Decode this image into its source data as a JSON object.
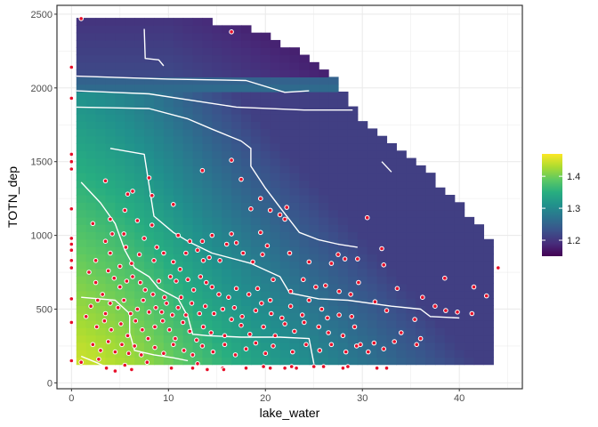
{
  "chart_data": {
    "type": "heatmap",
    "subtype": "interpolated surface with contour lines and scatter overlay",
    "xlabel": "lake_water",
    "ylabel": "TOTN_dep",
    "xlim": [
      -1.5,
      46.5
    ],
    "ylim": [
      -40,
      2560
    ],
    "x_ticks": [
      0,
      10,
      20,
      30,
      40
    ],
    "y_ticks": [
      0,
      500,
      1000,
      1500,
      2000,
      2500
    ],
    "grid": true,
    "colorscale": "viridis",
    "colorbar": {
      "range": [
        1.15,
        1.47
      ],
      "ticks": [
        1.2,
        1.3,
        1.4
      ],
      "position": "right"
    },
    "grid_step": [
      1,
      50
    ],
    "surface_extent": {
      "x": [
        0.5,
        43.5
      ],
      "y": [
        125,
        2450
      ]
    },
    "upper_boundary": [
      [
        0.5,
        2450
      ],
      [
        11.5,
        2450
      ],
      [
        17.5,
        2400
      ],
      [
        24.5,
        2200
      ],
      [
        27.5,
        2000
      ],
      [
        30,
        1750
      ],
      [
        33,
        1600
      ],
      [
        36,
        1450
      ],
      [
        39,
        1250
      ],
      [
        42,
        1050
      ],
      [
        43.5,
        930
      ]
    ],
    "contour_lines": [
      [
        [
          7.5,
          2400
        ],
        [
          7.6,
          2200
        ],
        [
          9,
          2190
        ],
        [
          9.5,
          2150
        ]
      ],
      [
        [
          0.5,
          2080
        ],
        [
          10,
          2060
        ],
        [
          18,
          2050
        ],
        [
          22,
          1970
        ],
        [
          24.5,
          1980
        ]
      ],
      [
        [
          0.5,
          1980
        ],
        [
          8,
          1960
        ],
        [
          17,
          1870
        ],
        [
          24,
          1850
        ],
        [
          29,
          1850
        ]
      ],
      [
        [
          0.5,
          1870
        ],
        [
          8,
          1860
        ],
        [
          12,
          1790
        ],
        [
          14.5,
          1720
        ],
        [
          17.5,
          1640
        ],
        [
          18.5,
          1590
        ],
        [
          18.5,
          1470
        ],
        [
          20,
          1320
        ],
        [
          21.5,
          1190
        ],
        [
          23.5,
          1020
        ],
        [
          25.5,
          970
        ],
        [
          27.5,
          940
        ],
        [
          29.5,
          920
        ]
      ],
      [
        [
          4,
          1590
        ],
        [
          7.5,
          1550
        ],
        [
          8,
          1340
        ],
        [
          8.5,
          1130
        ],
        [
          10.5,
          1020
        ],
        [
          12,
          960
        ],
        [
          14.5,
          880
        ],
        [
          18.5,
          810
        ],
        [
          21.5,
          720
        ],
        [
          22.5,
          610
        ],
        [
          25.5,
          570
        ],
        [
          28.5,
          560
        ],
        [
          33,
          520
        ],
        [
          36,
          500
        ],
        [
          37,
          450
        ],
        [
          40,
          440
        ]
      ],
      [
        [
          32,
          1500
        ],
        [
          33,
          1430
        ]
      ],
      [
        [
          1,
          1360
        ],
        [
          3,
          1220
        ],
        [
          4.5,
          1080
        ],
        [
          5.5,
          900
        ],
        [
          6.5,
          780
        ],
        [
          8,
          720
        ],
        [
          9,
          640
        ],
        [
          11,
          570
        ],
        [
          12,
          450
        ],
        [
          12.5,
          330
        ],
        [
          14,
          320
        ],
        [
          17.5,
          310
        ],
        [
          21.5,
          310
        ],
        [
          24.5,
          300
        ],
        [
          25,
          130
        ]
      ],
      [
        [
          1,
          580
        ],
        [
          4.5,
          560
        ],
        [
          6,
          470
        ],
        [
          6,
          340
        ],
        [
          6.5,
          220
        ],
        [
          8.5,
          190
        ],
        [
          10.5,
          170
        ],
        [
          12,
          150
        ]
      ],
      [
        [
          1,
          180
        ],
        [
          2.5,
          140
        ],
        [
          3.5,
          110
        ]
      ]
    ],
    "points": [
      [
        1,
        2470
      ],
      [
        0,
        2140
      ],
      [
        0,
        1930
      ],
      [
        0,
        1550
      ],
      [
        0,
        1500
      ],
      [
        0,
        1450
      ],
      [
        0,
        1180
      ],
      [
        0,
        980
      ],
      [
        0,
        940
      ],
      [
        0,
        900
      ],
      [
        0,
        830
      ],
      [
        0,
        780
      ],
      [
        0,
        570
      ],
      [
        0,
        410
      ],
      [
        0,
        150
      ],
      [
        16.5,
        2380
      ],
      [
        13.5,
        1440
      ],
      [
        16.5,
        1510
      ],
      [
        8,
        1390
      ],
      [
        3.5,
        1370
      ],
      [
        6.3,
        1300
      ],
      [
        5.8,
        1280
      ],
      [
        8.3,
        1270
      ],
      [
        10.5,
        1210
      ],
      [
        17.5,
        1380
      ],
      [
        19.5,
        1250
      ],
      [
        18.5,
        1180
      ],
      [
        20.5,
        1170
      ],
      [
        21.5,
        1140
      ],
      [
        22,
        1110
      ],
      [
        30.5,
        1120
      ],
      [
        22.2,
        1190
      ],
      [
        2.2,
        1080
      ],
      [
        4,
        1110
      ],
      [
        5.5,
        1170
      ],
      [
        6.8,
        1100
      ],
      [
        4.2,
        1010
      ],
      [
        5.4,
        1010
      ],
      [
        8.3,
        1070
      ],
      [
        3.5,
        960
      ],
      [
        5.6,
        920
      ],
      [
        7.5,
        980
      ],
      [
        8.8,
        920
      ],
      [
        9.5,
        880
      ],
      [
        11,
        1000
      ],
      [
        12.2,
        960
      ],
      [
        13.5,
        960
      ],
      [
        14.5,
        1000
      ],
      [
        16.5,
        1010
      ],
      [
        17,
        950
      ],
      [
        19.5,
        1020
      ],
      [
        19.7,
        870
      ],
      [
        20.2,
        930
      ],
      [
        2.5,
        830
      ],
      [
        4,
        880
      ],
      [
        5,
        790
      ],
      [
        6.2,
        810
      ],
      [
        7,
        870
      ],
      [
        8.5,
        830
      ],
      [
        10.5,
        820
      ],
      [
        11.2,
        770
      ],
      [
        11.8,
        880
      ],
      [
        13,
        900
      ],
      [
        13.6,
        830
      ],
      [
        14.2,
        850
      ],
      [
        15.3,
        830
      ],
      [
        16,
        940
      ],
      [
        17.7,
        880
      ],
      [
        18.7,
        820
      ],
      [
        20.8,
        700
      ],
      [
        22.5,
        880
      ],
      [
        24.5,
        820
      ],
      [
        26.8,
        810
      ],
      [
        27.5,
        870
      ],
      [
        28.2,
        840
      ],
      [
        29.5,
        840
      ],
      [
        32,
        910
      ],
      [
        32.2,
        800
      ],
      [
        38.5,
        710
      ],
      [
        41.5,
        650
      ],
      [
        1.8,
        750
      ],
      [
        2.5,
        680
      ],
      [
        3.2,
        600
      ],
      [
        3.8,
        760
      ],
      [
        4.4,
        710
      ],
      [
        5,
        650
      ],
      [
        5.7,
        690
      ],
      [
        6.3,
        720
      ],
      [
        7.1,
        680
      ],
      [
        7.6,
        630
      ],
      [
        8.4,
        600
      ],
      [
        9,
        690
      ],
      [
        9.6,
        580
      ],
      [
        10.2,
        720
      ],
      [
        10.8,
        690
      ],
      [
        11.3,
        580
      ],
      [
        12,
        700
      ],
      [
        12.6,
        630
      ],
      [
        13.3,
        720
      ],
      [
        13.9,
        680
      ],
      [
        14.5,
        650
      ],
      [
        15.2,
        600
      ],
      [
        16.2,
        580
      ],
      [
        17,
        640
      ],
      [
        18.3,
        600
      ],
      [
        19.2,
        640
      ],
      [
        20.5,
        560
      ],
      [
        22.6,
        620
      ],
      [
        23.9,
        700
      ],
      [
        25.2,
        650
      ],
      [
        26.2,
        660
      ],
      [
        27.6,
        620
      ],
      [
        28.8,
        600
      ],
      [
        29.6,
        680
      ],
      [
        33.6,
        640
      ],
      [
        2,
        520
      ],
      [
        2.7,
        560
      ],
      [
        3.5,
        470
      ],
      [
        4,
        540
      ],
      [
        4.8,
        510
      ],
      [
        5.4,
        560
      ],
      [
        6.1,
        470
      ],
      [
        6.8,
        500
      ],
      [
        7.4,
        560
      ],
      [
        8,
        480
      ],
      [
        8.7,
        510
      ],
      [
        9.3,
        480
      ],
      [
        9.8,
        540
      ],
      [
        10.4,
        460
      ],
      [
        11,
        510
      ],
      [
        11.8,
        460
      ],
      [
        12.4,
        540
      ],
      [
        13.2,
        470
      ],
      [
        13.8,
        520
      ],
      [
        14.7,
        470
      ],
      [
        15.6,
        500
      ],
      [
        16.8,
        510
      ],
      [
        17.6,
        450
      ],
      [
        19,
        490
      ],
      [
        19.6,
        540
      ],
      [
        20.6,
        470
      ],
      [
        21.7,
        440
      ],
      [
        22.6,
        520
      ],
      [
        23.8,
        460
      ],
      [
        24.5,
        560
      ],
      [
        25.8,
        500
      ],
      [
        26.4,
        440
      ],
      [
        27.6,
        460
      ],
      [
        28.9,
        450
      ],
      [
        31.3,
        550
      ],
      [
        32.5,
        490
      ],
      [
        35.4,
        430
      ],
      [
        36.2,
        580
      ],
      [
        37.5,
        520
      ],
      [
        38.6,
        490
      ],
      [
        39.8,
        480
      ],
      [
        41.3,
        470
      ],
      [
        42.8,
        590
      ],
      [
        44,
        780
      ],
      [
        1.5,
        450
      ],
      [
        2.6,
        380
      ],
      [
        3.4,
        420
      ],
      [
        4.1,
        360
      ],
      [
        5.1,
        400
      ],
      [
        5.8,
        320
      ],
      [
        6.6,
        420
      ],
      [
        7.3,
        360
      ],
      [
        7.9,
        300
      ],
      [
        8.6,
        380
      ],
      [
        9.4,
        420
      ],
      [
        10.1,
        360
      ],
      [
        10.7,
        300
      ],
      [
        11.5,
        410
      ],
      [
        12.2,
        350
      ],
      [
        12.9,
        290
      ],
      [
        13.6,
        380
      ],
      [
        14.4,
        340
      ],
      [
        15.8,
        320
      ],
      [
        16.5,
        430
      ],
      [
        17.5,
        390
      ],
      [
        18.4,
        330
      ],
      [
        19.8,
        380
      ],
      [
        21,
        320
      ],
      [
        22,
        400
      ],
      [
        23,
        350
      ],
      [
        24,
        410
      ],
      [
        25.5,
        380
      ],
      [
        26.5,
        340
      ],
      [
        28,
        320
      ],
      [
        29.2,
        380
      ],
      [
        29.8,
        260
      ],
      [
        31.2,
        270
      ],
      [
        34,
        340
      ],
      [
        36,
        300
      ],
      [
        2.2,
        260
      ],
      [
        3,
        220
      ],
      [
        3.8,
        280
      ],
      [
        4.5,
        210
      ],
      [
        5.2,
        260
      ],
      [
        5.9,
        200
      ],
      [
        6.5,
        250
      ],
      [
        7.2,
        190
      ],
      [
        8.6,
        240
      ],
      [
        9.5,
        200
      ],
      [
        10.5,
        260
      ],
      [
        11.6,
        220
      ],
      [
        12.5,
        190
      ],
      [
        13.5,
        250
      ],
      [
        14.6,
        210
      ],
      [
        15.8,
        260
      ],
      [
        16.9,
        190
      ],
      [
        18,
        230
      ],
      [
        19,
        270
      ],
      [
        20,
        200
      ],
      [
        20.8,
        250
      ],
      [
        22.8,
        210
      ],
      [
        24.2,
        260
      ],
      [
        25.6,
        220
      ],
      [
        26.8,
        260
      ],
      [
        28.3,
        210
      ],
      [
        29.4,
        250
      ],
      [
        30.6,
        210
      ],
      [
        32.2,
        230
      ],
      [
        33.3,
        280
      ],
      [
        35.6,
        260
      ],
      [
        1,
        140
      ],
      [
        2.8,
        160
      ],
      [
        3.6,
        100
      ],
      [
        4.5,
        80
      ],
      [
        5.5,
        120
      ],
      [
        6.2,
        90
      ],
      [
        7.8,
        140
      ],
      [
        10.3,
        100
      ],
      [
        12.5,
        100
      ],
      [
        14,
        90
      ],
      [
        15.6,
        100
      ],
      [
        18,
        100
      ],
      [
        19.8,
        110
      ],
      [
        22,
        100
      ],
      [
        22.7,
        110
      ],
      [
        23.2,
        100
      ],
      [
        25,
        110
      ],
      [
        26,
        110
      ],
      [
        28,
        100
      ],
      [
        28.5,
        110
      ],
      [
        31.5,
        100
      ],
      [
        32.5,
        100
      ],
      [
        13,
        130
      ],
      [
        15.7,
        90
      ],
      [
        20.5,
        100
      ]
    ]
  }
}
